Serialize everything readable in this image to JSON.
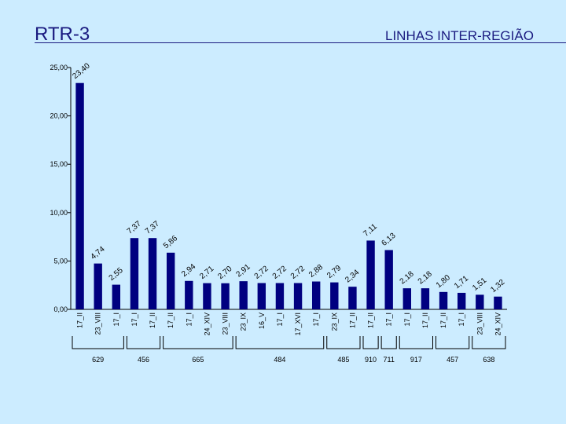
{
  "header": {
    "title": "RTR-3",
    "subtitle": "LINHAS INTER-REGIÃO"
  },
  "colors": {
    "bar": "#000080",
    "background": "#ccecff",
    "title": "#1a1a80"
  },
  "chart_data": {
    "type": "bar",
    "title": "",
    "xlabel": "",
    "ylabel": "",
    "ylim": [
      0,
      25
    ],
    "yticks": [
      "0,00",
      "5,00",
      "10,00",
      "15,00",
      "20,00",
      "25,00"
    ],
    "grid": false,
    "categories": [
      "17_II",
      "23_VIII",
      "17_I",
      "17_I",
      "17_II",
      "17_II",
      "17_I",
      "24_XIV",
      "23_VIII",
      "23_IX",
      "16_V",
      "17_I",
      "17_XVI",
      "17_I",
      "23_IX",
      "17_II",
      "17_II",
      "17_I",
      "17_I",
      "17_II",
      "17_II",
      "17_I",
      "23_VIII",
      "24_XIV"
    ],
    "values": [
      23.4,
      4.74,
      2.55,
      7.37,
      7.37,
      5.86,
      2.94,
      2.71,
      2.7,
      2.91,
      2.72,
      2.72,
      2.72,
      2.88,
      2.79,
      2.34,
      7.11,
      6.13,
      2.18,
      2.18,
      1.8,
      1.71,
      1.51,
      1.32
    ],
    "value_labels": [
      "23,40",
      "4,74",
      "2,55",
      "7,37",
      "7,37",
      "5,86",
      "2,94",
      "2,71",
      "2,70",
      "2,91",
      "2,72",
      "2,72",
      "2,72",
      "2,88",
      "2,79",
      "2,34",
      "7,11",
      "6,13",
      "2,18",
      "2,18",
      "1,80",
      "1,71",
      "1,51",
      "1,32"
    ],
    "groups": [
      {
        "label": "629",
        "start": 0,
        "end": 2
      },
      {
        "label": "456",
        "start": 3,
        "end": 4
      },
      {
        "label": "665",
        "start": 5,
        "end": 8
      },
      {
        "label": "484",
        "start": 9,
        "end": 13
      },
      {
        "label": "485",
        "start": 14,
        "end": 15
      },
      {
        "label": "910",
        "start": 16,
        "end": 16
      },
      {
        "label": "711",
        "start": 17,
        "end": 17
      },
      {
        "label": "917",
        "start": 18,
        "end": 19
      },
      {
        "label": "457",
        "start": 20,
        "end": 21
      },
      {
        "label": "638",
        "start": 22,
        "end": 23
      }
    ]
  }
}
